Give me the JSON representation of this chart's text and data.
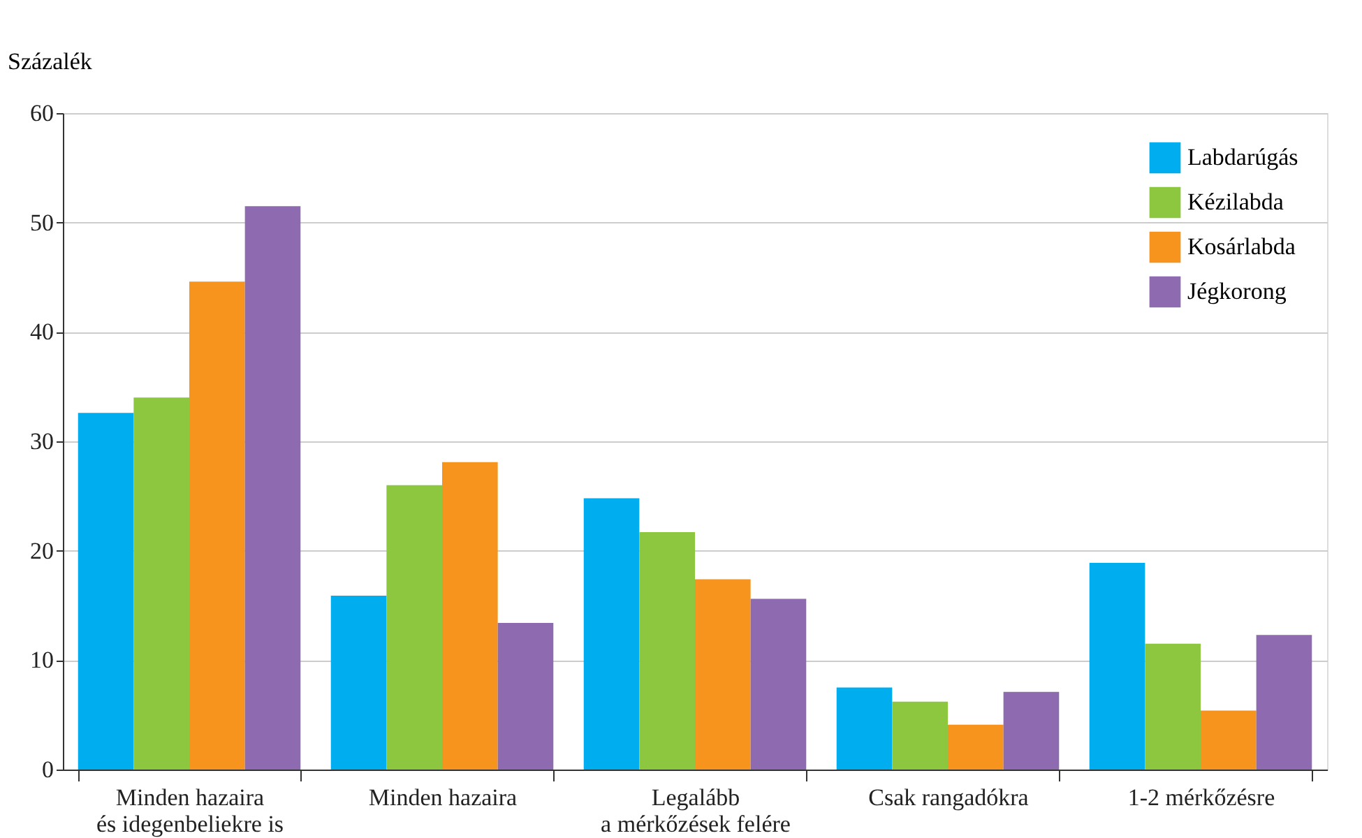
{
  "chart_data": {
    "type": "bar",
    "ylabel": "Százalék",
    "categories": [
      "Minden hazaira\nés idegenbeliekre is",
      "Minden hazaira",
      "Legalább\na mérkőzések felére",
      "Csak rangadókra",
      "1-2 mérkőzésre"
    ],
    "series": [
      {
        "name": "Labdarúgás",
        "color": "#00aeef",
        "values": [
          32.6,
          15.9,
          24.8,
          7.5,
          18.9
        ]
      },
      {
        "name": "Kézilabda",
        "color": "#8dc63f",
        "values": [
          34.0,
          26.0,
          21.7,
          6.2,
          11.5
        ]
      },
      {
        "name": "Kosárlabda",
        "color": "#f7941d",
        "values": [
          44.6,
          28.1,
          17.4,
          4.1,
          5.4
        ]
      },
      {
        "name": "Jégkorong",
        "color": "#8e6bb0",
        "values": [
          51.5,
          13.4,
          15.6,
          7.1,
          12.3
        ]
      }
    ],
    "ylim": [
      0,
      60
    ],
    "yticks": [
      0,
      10,
      20,
      30,
      40,
      50,
      60
    ],
    "grid": "y",
    "legend": "top right"
  }
}
